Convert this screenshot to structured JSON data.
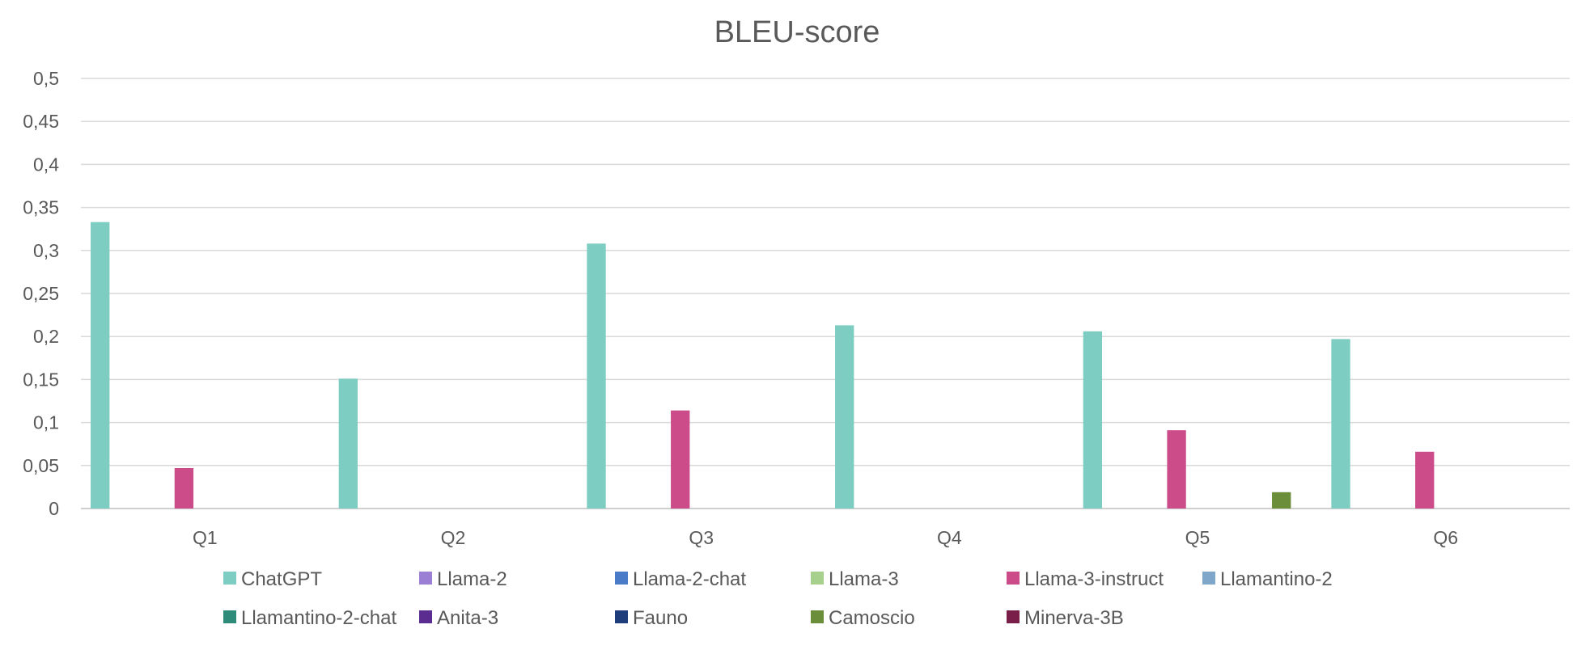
{
  "chart_data": {
    "type": "bar",
    "title": "BLEU-score",
    "xlabel": "",
    "ylabel": "",
    "categories": [
      "Q1",
      "Q2",
      "Q3",
      "Q4",
      "Q5",
      "Q6"
    ],
    "y_ticks": [
      "0",
      "0,05",
      "0,1",
      "0,15",
      "0,2",
      "0,25",
      "0,3",
      "0,35",
      "0,4",
      "0,45",
      "0,5"
    ],
    "ylim": [
      0,
      0.5
    ],
    "grid": true,
    "legend_position": "bottom",
    "series": [
      {
        "name": "ChatGPT",
        "color": "#7ecdc2",
        "values": [
          0.333,
          0.151,
          0.308,
          0.213,
          0.206,
          0.197
        ]
      },
      {
        "name": "Llama-2",
        "color": "#9b7fd4",
        "values": [
          0,
          0,
          0,
          0,
          0,
          0
        ]
      },
      {
        "name": "Llama-2-chat",
        "color": "#4a7bc8",
        "values": [
          0,
          0,
          0,
          0,
          0,
          0
        ]
      },
      {
        "name": "Llama-3",
        "color": "#a8d08d",
        "values": [
          0,
          0,
          0,
          0,
          0,
          0
        ]
      },
      {
        "name": "Llama-3-instruct",
        "color": "#cc4c8a",
        "values": [
          0.047,
          0,
          0.114,
          0,
          0.091,
          0.066
        ]
      },
      {
        "name": "Llamantino-2",
        "color": "#7fa7c9",
        "values": [
          0,
          0,
          0,
          0,
          0,
          0
        ]
      },
      {
        "name": "Llamantino-2-chat",
        "color": "#2e8b7a",
        "values": [
          0,
          0,
          0,
          0,
          0,
          0
        ]
      },
      {
        "name": "Anita-3",
        "color": "#5b2d91",
        "values": [
          0,
          0,
          0,
          0,
          0,
          0
        ]
      },
      {
        "name": "Fauno",
        "color": "#1f3d7a",
        "values": [
          0,
          0,
          0,
          0,
          0,
          0
        ]
      },
      {
        "name": "Camoscio",
        "color": "#6b8e3a",
        "values": [
          0,
          0,
          0,
          0,
          0.019,
          0
        ]
      },
      {
        "name": "Minerva-3B",
        "color": "#7a1f4a",
        "values": [
          0,
          0,
          0,
          0,
          0,
          0
        ]
      }
    ]
  }
}
